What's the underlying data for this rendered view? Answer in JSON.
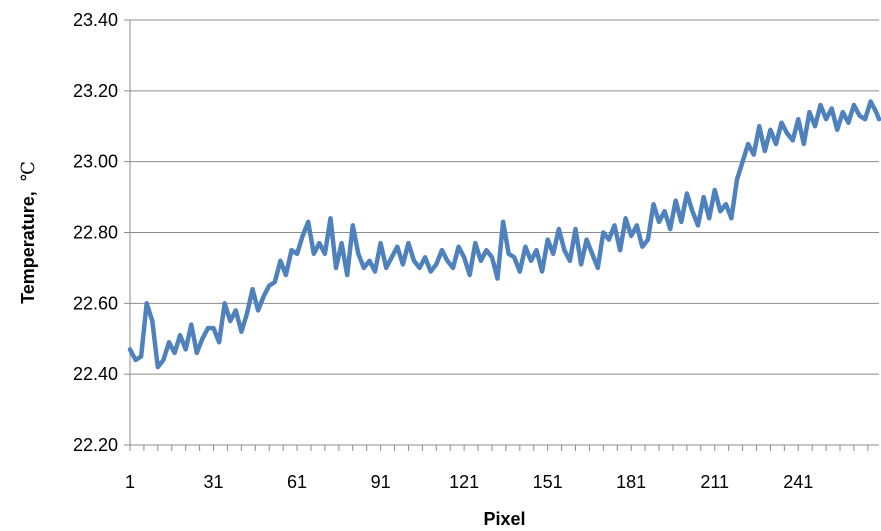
{
  "chart_data": {
    "type": "line",
    "title": "",
    "xlabel": "Pixel",
    "ylabel": "Temperature,",
    "ylabel_unit": "℃",
    "xlim": [
      1,
      270
    ],
    "ylim": [
      22.2,
      23.4
    ],
    "y_ticks": [
      "22.20",
      "22.40",
      "22.60",
      "22.80",
      "23.00",
      "23.20",
      "23.40"
    ],
    "x_ticks": [
      "1",
      "31",
      "61",
      "91",
      "121",
      "151",
      "181",
      "211",
      "241"
    ],
    "grid": "horizontal",
    "legend": "none",
    "color": "#4F81BD",
    "series": [
      {
        "x": [
          1,
          3,
          5,
          7,
          9,
          11,
          13,
          15,
          17,
          19,
          21,
          23,
          25,
          27,
          29,
          31,
          33,
          35,
          37,
          39,
          41,
          43,
          45,
          47,
          49,
          51,
          53,
          55,
          57,
          59,
          61,
          63,
          65,
          67,
          69,
          71,
          73,
          75,
          77,
          79,
          81,
          83,
          85,
          87,
          89,
          91,
          93,
          95,
          97,
          99,
          101,
          103,
          105,
          107,
          109,
          111,
          113,
          115,
          117,
          119,
          121,
          123,
          125,
          127,
          129,
          131,
          133,
          135,
          137,
          139,
          141,
          143,
          145,
          147,
          149,
          151,
          153,
          155,
          157,
          159,
          161,
          163,
          165,
          167,
          169,
          171,
          173,
          175,
          177,
          179,
          181,
          183,
          185,
          187,
          189,
          191,
          193,
          195,
          197,
          199,
          201,
          203,
          205,
          207,
          209,
          211,
          213,
          215,
          217,
          219,
          221,
          223,
          225,
          227,
          229,
          231,
          233,
          235,
          237,
          239,
          241,
          243,
          245,
          247,
          249,
          251,
          253,
          255,
          257,
          259,
          261,
          263,
          265,
          267,
          269,
          270
        ],
        "values": [
          22.47,
          22.44,
          22.45,
          22.6,
          22.55,
          22.42,
          22.44,
          22.49,
          22.46,
          22.51,
          22.47,
          22.54,
          22.46,
          22.5,
          22.53,
          22.53,
          22.49,
          22.6,
          22.55,
          22.58,
          22.52,
          22.57,
          22.64,
          22.58,
          22.62,
          22.65,
          22.66,
          22.72,
          22.68,
          22.75,
          22.74,
          22.79,
          22.83,
          22.74,
          22.77,
          22.74,
          22.84,
          22.7,
          22.77,
          22.68,
          22.82,
          22.74,
          22.7,
          22.72,
          22.69,
          22.77,
          22.7,
          22.73,
          22.76,
          22.71,
          22.77,
          22.72,
          22.7,
          22.73,
          22.69,
          22.71,
          22.75,
          22.72,
          22.7,
          22.76,
          22.73,
          22.68,
          22.77,
          22.72,
          22.75,
          22.73,
          22.67,
          22.83,
          22.74,
          22.73,
          22.69,
          22.76,
          22.72,
          22.75,
          22.69,
          22.78,
          22.74,
          22.81,
          22.75,
          22.72,
          22.81,
          22.71,
          22.78,
          22.74,
          22.7,
          22.8,
          22.78,
          22.82,
          22.75,
          22.84,
          22.79,
          22.82,
          22.76,
          22.78,
          22.88,
          22.83,
          22.86,
          22.81,
          22.89,
          22.83,
          22.91,
          22.86,
          22.82,
          22.9,
          22.84,
          22.92,
          22.86,
          22.88,
          22.84,
          22.95,
          23.0,
          23.05,
          23.02,
          23.1,
          23.03,
          23.09,
          23.05,
          23.11,
          23.08,
          23.06,
          23.12,
          23.05,
          23.14,
          23.1,
          23.16,
          23.12,
          23.15,
          23.09,
          23.14,
          23.11,
          23.16,
          23.13,
          23.12,
          23.17,
          23.14,
          23.12
        ]
      }
    ]
  }
}
